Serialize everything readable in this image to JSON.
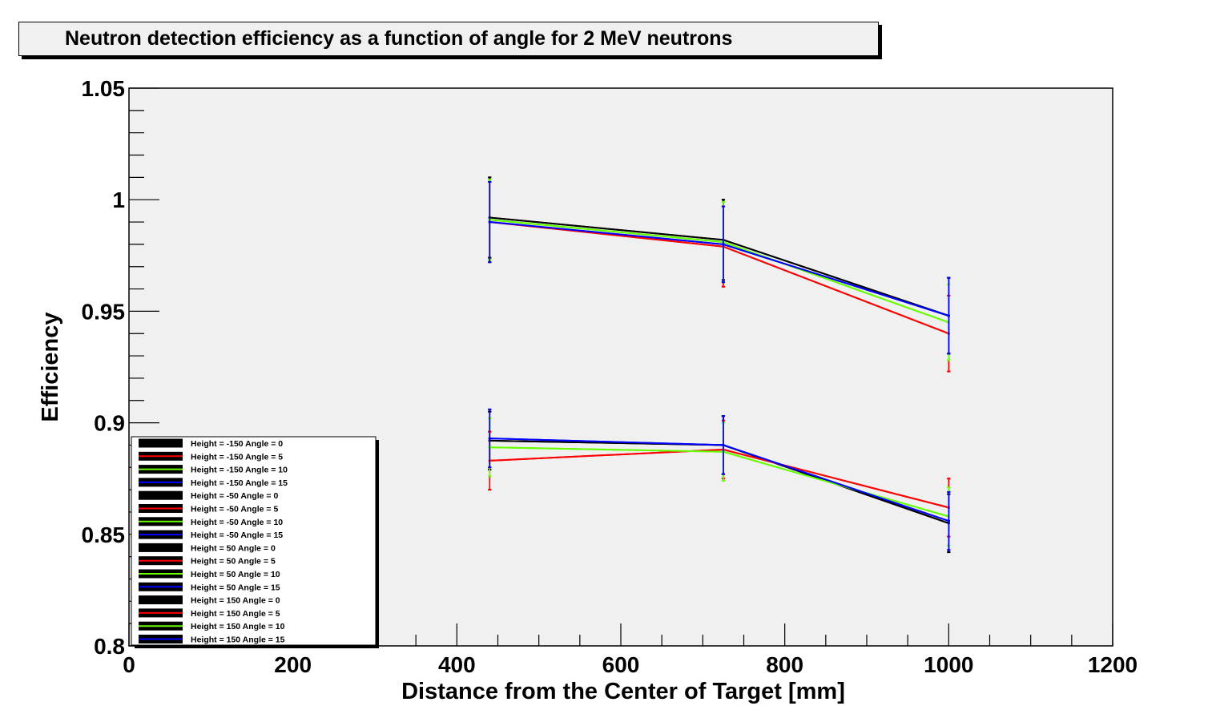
{
  "chart_data": {
    "type": "line",
    "title": "Neutron detection efficiency as a function of angle for 2 MeV neutrons",
    "xlabel": "Distance from the Center of Target [mm]",
    "ylabel": "Efficiency",
    "xlim": [
      0,
      1200
    ],
    "ylim": [
      0.8,
      1.05
    ],
    "x_ticks": [
      "0",
      "200",
      "400",
      "600",
      "800",
      "1000",
      "1200"
    ],
    "y_ticks": [
      "0.8",
      "0.85",
      "0.9",
      "0.95",
      "1",
      "1.05"
    ],
    "grid": false,
    "legend_position": "bottom-left",
    "error_bars": true,
    "x": [
      440,
      725,
      1000
    ],
    "series": [
      {
        "name": "Height = -150 Angle = 0",
        "color": "#000000",
        "values": [
          0.992,
          0.982,
          0.948
        ],
        "errors": [
          0.018,
          0.018,
          0.017
        ]
      },
      {
        "name": "Height = -150 Angle = 5",
        "color": "#ff0000",
        "values": [
          0.99,
          0.979,
          0.94
        ],
        "errors": [
          0.018,
          0.018,
          0.017
        ]
      },
      {
        "name": "Height = -150 Angle = 10",
        "color": "#66ff00",
        "values": [
          0.991,
          0.981,
          0.945
        ],
        "errors": [
          0.018,
          0.018,
          0.017
        ]
      },
      {
        "name": "Height = -150 Angle = 15",
        "color": "#0000ff",
        "values": [
          0.99,
          0.98,
          0.948
        ],
        "errors": [
          0.018,
          0.017,
          0.017
        ]
      },
      {
        "name": "Height = -50 Angle = 0",
        "color": "#000000",
        "values": [
          0.992,
          0.982,
          0.948
        ],
        "errors": [
          0.018,
          0.018,
          0.017
        ]
      },
      {
        "name": "Height = -50 Angle = 5",
        "color": "#ff0000",
        "values": [
          0.99,
          0.979,
          0.94
        ],
        "errors": [
          0.018,
          0.018,
          0.017
        ]
      },
      {
        "name": "Height = -50 Angle = 10",
        "color": "#66ff00",
        "values": [
          0.991,
          0.981,
          0.945
        ],
        "errors": [
          0.018,
          0.018,
          0.017
        ]
      },
      {
        "name": "Height = -50 Angle = 15",
        "color": "#0000ff",
        "values": [
          0.99,
          0.98,
          0.948
        ],
        "errors": [
          0.018,
          0.017,
          0.017
        ]
      },
      {
        "name": "Height = 50 Angle = 0",
        "color": "#000000",
        "values": [
          0.892,
          0.89,
          0.855
        ],
        "errors": [
          0.013,
          0.013,
          0.013
        ]
      },
      {
        "name": "Height = 50 Angle = 5",
        "color": "#ff0000",
        "values": [
          0.883,
          0.888,
          0.862
        ],
        "errors": [
          0.013,
          0.013,
          0.013
        ]
      },
      {
        "name": "Height = 50 Angle = 10",
        "color": "#66ff00",
        "values": [
          0.889,
          0.887,
          0.858
        ],
        "errors": [
          0.013,
          0.013,
          0.013
        ]
      },
      {
        "name": "Height = 50 Angle = 15",
        "color": "#0000ff",
        "values": [
          0.893,
          0.89,
          0.856
        ],
        "errors": [
          0.013,
          0.013,
          0.013
        ]
      },
      {
        "name": "Height = 150 Angle = 0",
        "color": "#000000",
        "values": [
          0.892,
          0.89,
          0.855
        ],
        "errors": [
          0.013,
          0.013,
          0.013
        ]
      },
      {
        "name": "Height = 150 Angle = 5",
        "color": "#ff0000",
        "values": [
          0.883,
          0.888,
          0.862
        ],
        "errors": [
          0.013,
          0.013,
          0.013
        ]
      },
      {
        "name": "Height = 150 Angle = 10",
        "color": "#66ff00",
        "values": [
          0.889,
          0.887,
          0.858
        ],
        "errors": [
          0.013,
          0.013,
          0.013
        ]
      },
      {
        "name": "Height = 150 Angle = 15",
        "color": "#0000ff",
        "values": [
          0.893,
          0.89,
          0.856
        ],
        "errors": [
          0.013,
          0.013,
          0.013
        ]
      }
    ]
  }
}
